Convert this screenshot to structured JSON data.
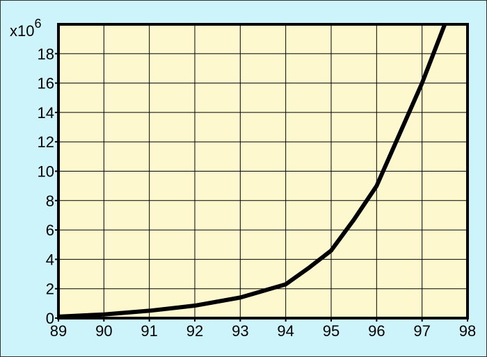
{
  "chart_data": {
    "type": "line",
    "y_multiplier": {
      "base": "x10",
      "exponent": "6"
    },
    "x": [
      89,
      90,
      91,
      92,
      93,
      94,
      94.5,
      95,
      95.5,
      96,
      96.5,
      97,
      97.5
    ],
    "series": [
      {
        "color": "#000000",
        "values": [
          0.1,
          0.25,
          0.5,
          0.85,
          1.4,
          2.3,
          3.4,
          4.6,
          6.7,
          9,
          12.5,
          16,
          20
        ]
      }
    ],
    "xlim": [
      89,
      98
    ],
    "xticks": [
      89,
      90,
      91,
      92,
      93,
      94,
      95,
      96,
      97,
      98
    ],
    "ylim": [
      0,
      20
    ],
    "yticks": [
      0,
      2,
      4,
      6,
      8,
      10,
      12,
      14,
      16,
      18
    ],
    "grid": true
  }
}
